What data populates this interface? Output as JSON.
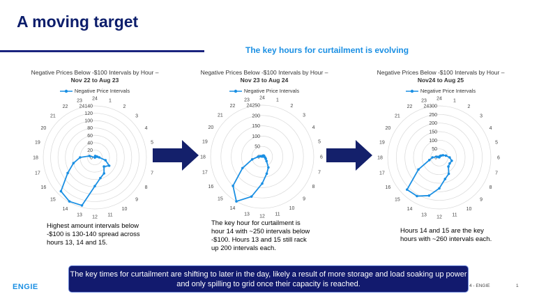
{
  "slide": {
    "title": "A moving target",
    "subtitle": "The key hours for curtailment is evolving",
    "banner": "The key times for curtailment are shifting to later in the day, likely a result of more storage and load soaking up power and only spilling to grid once their capacity is reached.",
    "logo": "ENGIE",
    "footer_tag": "4 - ENGIE",
    "page_number": "1"
  },
  "colors": {
    "accent": "#1a8fe3",
    "title": "#0c1d6b",
    "banner": "#121a6e",
    "arrow": "#14206b"
  },
  "chart_data": [
    {
      "type": "radar",
      "title": "Negative Prices Below -$100 Intervals by Hour –",
      "subtitle": "Nov 22 to Aug 23",
      "legend": "Negative Price Intervals",
      "categories": [
        "1",
        "2",
        "3",
        "4",
        "5",
        "6",
        "7",
        "8",
        "9",
        "10",
        "11",
        "12",
        "13",
        "14",
        "15",
        "16",
        "17",
        "18",
        "19",
        "20",
        "21",
        "22",
        "23",
        "24"
      ],
      "series": [
        {
          "name": "Negative Price Intervals",
          "values": [
            4,
            2,
            3,
            5,
            7,
            12,
            30,
            45,
            35,
            50,
            58,
            78,
            135,
            138,
            130,
            85,
            60,
            40,
            15,
            0,
            0,
            0,
            0,
            0
          ]
        }
      ],
      "rticks": [
        "0",
        "20",
        "40",
        "60",
        "80",
        "100",
        "120",
        "140"
      ],
      "rticks_corner": "24",
      "rmax": 140,
      "caption": "Highest amount intervals below -$100 is 130-140 spread across hours 13, 14 and 15."
    },
    {
      "type": "radar",
      "title": "Negative Prices Below -$100 Intervals by Hour –",
      "subtitle": "Nov 23 to Aug 24",
      "legend": "Negative Price Intervals",
      "categories": [
        "1",
        "2",
        "3",
        "4",
        "5",
        "6",
        "7",
        "8",
        "9",
        "10",
        "11",
        "12",
        "13",
        "14",
        "15",
        "16",
        "17",
        "18",
        "19",
        "20",
        "21",
        "22",
        "23",
        "24"
      ],
      "series": [
        {
          "name": "Negative Price Intervals",
          "values": [
            2,
            5,
            8,
            10,
            10,
            10,
            15,
            20,
            30,
            60,
            85,
            130,
            200,
            250,
            200,
            110,
            50,
            20,
            10,
            5,
            2,
            1,
            1,
            1
          ]
        }
      ],
      "rticks": [
        "0",
        "50",
        "100",
        "150",
        "200",
        "250"
      ],
      "rticks_corner": "24",
      "rmax": 250,
      "caption": "The key hour for curtailment is hour 14 with ~250 intervals below -$100. Hours 13 and 15 still rack up 200 intervals each."
    },
    {
      "type": "radar",
      "title": "Negative Prices Below -$100 Intervals by Hour –",
      "subtitle": "Nov24 to Aug 25",
      "legend": "Negative Price Intervals",
      "categories": [
        "1",
        "2",
        "3",
        "4",
        "5",
        "6",
        "7",
        "8",
        "9",
        "10",
        "11",
        "12",
        "13",
        "14",
        "15",
        "16",
        "17",
        "18",
        "19",
        "20",
        "21",
        "22",
        "23",
        "24"
      ],
      "series": [
        {
          "name": "Negative Price Intervals",
          "values": [
            5,
            10,
            15,
            25,
            40,
            60,
            75,
            70,
            75,
            110,
            130,
            180,
            230,
            260,
            265,
            140,
            60,
            40,
            15,
            5,
            2,
            1,
            1,
            2
          ]
        }
      ],
      "rticks": [
        "0",
        "50",
        "100",
        "150",
        "200",
        "250",
        "300"
      ],
      "rticks_corner": "24",
      "rmax": 300,
      "caption": "Hours 14 and 15 are the key hours with ~260 intervals each."
    }
  ]
}
